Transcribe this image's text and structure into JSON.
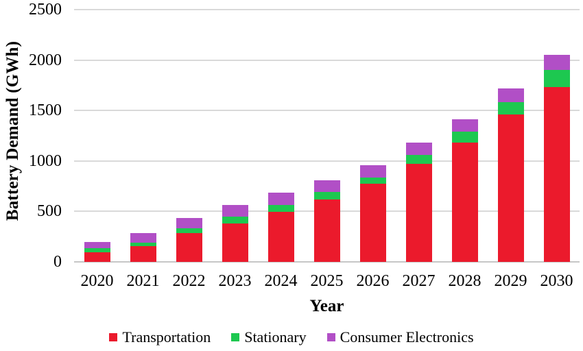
{
  "chart_data": {
    "type": "bar",
    "stacked": true,
    "title": "",
    "xlabel": "Year",
    "ylabel": "Battery Demand (GWh)",
    "categories": [
      "2020",
      "2021",
      "2022",
      "2023",
      "2024",
      "2025",
      "2026",
      "2027",
      "2028",
      "2029",
      "2030"
    ],
    "series": [
      {
        "name": "Transportation",
        "color": "#eb1a2c",
        "values": [
          90,
          150,
          280,
          375,
          495,
          615,
          770,
          968,
          1178,
          1460,
          1732
        ]
      },
      {
        "name": "Stationary",
        "color": "#1dc850",
        "values": [
          45,
          40,
          48,
          68,
          66,
          77,
          64,
          90,
          112,
          125,
          168
        ]
      },
      {
        "name": "Consumer Electronics",
        "color": "#b14fc6",
        "values": [
          60,
          90,
          102,
          117,
          124,
          115,
          122,
          120,
          125,
          130,
          150
        ]
      }
    ],
    "totals": [
      195,
      280,
      430,
      560,
      685,
      807,
      956,
      1178,
      1415,
      1715,
      2050
    ],
    "ylim": [
      0,
      2500
    ],
    "y_ticks": [
      0,
      500,
      1000,
      1500,
      2000,
      2500
    ],
    "grid": true,
    "legend_position": "bottom",
    "gridline_color": "#d9d9d9",
    "text_color": "#000000"
  }
}
